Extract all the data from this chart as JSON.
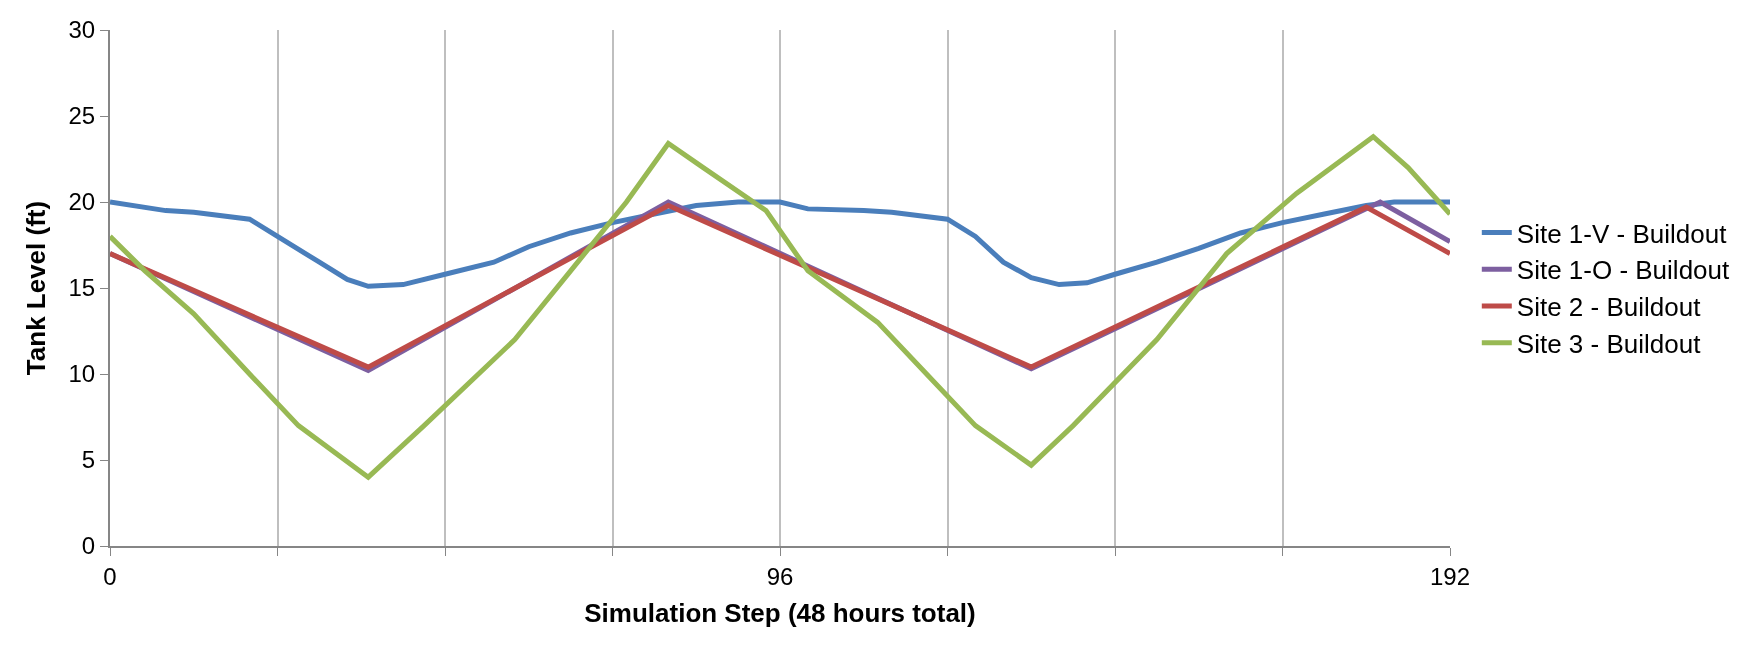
{
  "chart_data": {
    "type": "line",
    "xlabel": "Simulation Step (48 hours total)",
    "ylabel": "Tank Level (ft)",
    "xlim": [
      0,
      192
    ],
    "xticks": [
      0,
      {
        "value": 24,
        "label": null
      },
      {
        "value": 48,
        "label": null
      },
      {
        "value": 72,
        "label": null
      },
      96,
      {
        "value": 120,
        "label": null
      },
      {
        "value": 144,
        "label": null
      },
      {
        "value": 168,
        "label": null
      },
      192
    ],
    "ylim": [
      0,
      30
    ],
    "yticks": [
      0,
      5,
      10,
      15,
      20,
      25,
      30
    ],
    "grid": "x",
    "legend": "right",
    "marker": "none",
    "line_style": "solid",
    "series": [
      {
        "name": "Site 1-V - Buildout",
        "color": "#4a7ebb",
        "x": [
          0,
          8,
          12,
          20,
          24,
          30,
          34,
          37,
          42,
          48,
          55,
          60,
          66,
          72,
          78,
          84,
          90,
          96,
          100,
          108,
          112,
          120,
          124,
          128,
          132,
          136,
          140,
          144,
          150,
          156,
          162,
          168,
          174,
          180,
          184,
          192
        ],
        "values": [
          20,
          19.5,
          19.4,
          19,
          18,
          16.5,
          15.5,
          15.1,
          15.2,
          15.8,
          16.5,
          17.4,
          18.2,
          18.8,
          19.3,
          19.8,
          20,
          20,
          19.6,
          19.5,
          19.4,
          19,
          18,
          16.5,
          15.6,
          15.2,
          15.3,
          15.8,
          16.5,
          17.3,
          18.2,
          18.8,
          19.3,
          19.8,
          20,
          20
        ]
      },
      {
        "name": "Site 1-O - Buildout",
        "color": "#7d5fa0",
        "x": [
          0,
          37,
          80,
          132,
          182,
          192
        ],
        "values": [
          17,
          10.2,
          20,
          10.3,
          20,
          17.7
        ]
      },
      {
        "name": "Site 2 - Buildout",
        "color": "#be4b48",
        "x": [
          0,
          37,
          80,
          132,
          180,
          192
        ],
        "values": [
          17,
          10.4,
          19.8,
          10.4,
          19.7,
          17
        ]
      },
      {
        "name": "Site 3 - Buildout",
        "color": "#98b954",
        "x": [
          0,
          5,
          12,
          20,
          27,
          37,
          45,
          58,
          66,
          74,
          80,
          85,
          94,
          100,
          110,
          117,
          124,
          132,
          138,
          150,
          160,
          170,
          181,
          186,
          192
        ],
        "values": [
          18,
          16,
          13.5,
          10,
          7,
          4,
          7,
          12,
          16,
          20,
          23.4,
          22,
          19.5,
          16,
          13,
          10,
          7,
          4.7,
          7,
          12,
          17,
          20.5,
          23.8,
          22,
          19.3
        ]
      }
    ]
  }
}
